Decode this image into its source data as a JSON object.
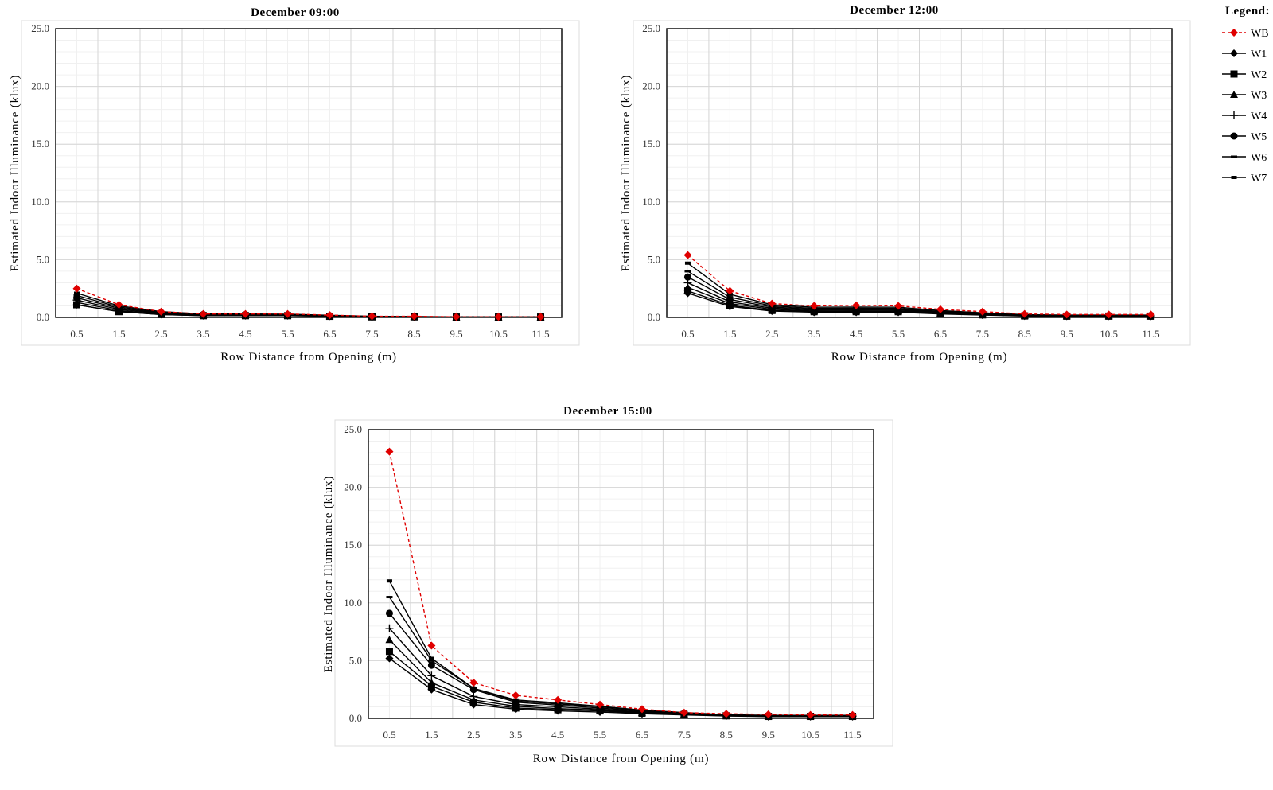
{
  "legend": {
    "title": "Legend:",
    "items": [
      {
        "name": "WB",
        "color": "#e00000",
        "marker": "diamond",
        "dashed": true
      },
      {
        "name": "W1",
        "color": "#000000",
        "marker": "diamond",
        "dashed": false
      },
      {
        "name": "W2",
        "color": "#000000",
        "marker": "square",
        "dashed": false
      },
      {
        "name": "W3",
        "color": "#000000",
        "marker": "triangle",
        "dashed": false
      },
      {
        "name": "W4",
        "color": "#000000",
        "marker": "plus",
        "dashed": false
      },
      {
        "name": "W5",
        "color": "#000000",
        "marker": "circle",
        "dashed": false
      },
      {
        "name": "W6",
        "color": "#000000",
        "marker": "dash",
        "dashed": false
      },
      {
        "name": "W7",
        "color": "#000000",
        "marker": "bar",
        "dashed": false
      }
    ]
  },
  "chart_data": [
    {
      "type": "line",
      "title": "December 09:00",
      "xlabel": "Row Distance from Opening (m)",
      "ylabel": "Estimated Indoor Illuminance (klux)",
      "ylim": [
        0,
        25
      ],
      "yticks": [
        "0.0",
        "5.0",
        "10.0",
        "15.0",
        "20.0",
        "25.0"
      ],
      "categories": [
        "0.5",
        "1.5",
        "2.5",
        "3.5",
        "4.5",
        "5.5",
        "6.5",
        "7.5",
        "8.5",
        "9.5",
        "10.5",
        "11.5"
      ],
      "grid": true,
      "series": [
        {
          "name": "WB",
          "values": [
            2.5,
            1.1,
            0.5,
            0.3,
            0.3,
            0.3,
            0.2,
            0.1,
            0.1,
            0.05,
            0.05,
            0.05
          ]
        },
        {
          "name": "W1",
          "values": [
            1.1,
            0.5,
            0.25,
            0.15,
            0.15,
            0.15,
            0.1,
            0.05,
            0.05,
            0.03,
            0.03,
            0.03
          ]
        },
        {
          "name": "W2",
          "values": [
            1.1,
            0.5,
            0.25,
            0.15,
            0.15,
            0.15,
            0.1,
            0.05,
            0.05,
            0.03,
            0.03,
            0.03
          ]
        },
        {
          "name": "W3",
          "values": [
            1.3,
            0.6,
            0.3,
            0.2,
            0.2,
            0.2,
            0.12,
            0.06,
            0.05,
            0.03,
            0.03,
            0.03
          ]
        },
        {
          "name": "W4",
          "values": [
            1.5,
            0.7,
            0.35,
            0.22,
            0.22,
            0.2,
            0.14,
            0.07,
            0.05,
            0.04,
            0.04,
            0.04
          ]
        },
        {
          "name": "W5",
          "values": [
            1.7,
            0.8,
            0.4,
            0.25,
            0.25,
            0.22,
            0.15,
            0.08,
            0.06,
            0.04,
            0.04,
            0.04
          ]
        },
        {
          "name": "W6",
          "values": [
            1.9,
            0.9,
            0.45,
            0.28,
            0.28,
            0.25,
            0.17,
            0.09,
            0.06,
            0.04,
            0.04,
            0.04
          ]
        },
        {
          "name": "W7",
          "values": [
            2.1,
            1.0,
            0.5,
            0.3,
            0.3,
            0.28,
            0.18,
            0.1,
            0.07,
            0.05,
            0.05,
            0.05
          ]
        }
      ]
    },
    {
      "type": "line",
      "title": "December 12:00",
      "xlabel": "Row Distance from Opening (m)",
      "ylabel": "Estimated Indoor Illuminance (klux)",
      "ylim": [
        0,
        25
      ],
      "yticks": [
        "0.0",
        "5.0",
        "10.0",
        "15.0",
        "20.0",
        "25.0"
      ],
      "categories": [
        "0.5",
        "1.5",
        "2.5",
        "3.5",
        "4.5",
        "5.5",
        "6.5",
        "7.5",
        "8.5",
        "9.5",
        "10.5",
        "11.5"
      ],
      "grid": true,
      "series": [
        {
          "name": "WB",
          "values": [
            5.4,
            2.3,
            1.2,
            1.0,
            1.05,
            1.0,
            0.7,
            0.5,
            0.3,
            0.25,
            0.25,
            0.25
          ]
        },
        {
          "name": "W1",
          "values": [
            2.1,
            0.95,
            0.55,
            0.45,
            0.45,
            0.45,
            0.3,
            0.2,
            0.12,
            0.1,
            0.1,
            0.1
          ]
        },
        {
          "name": "W2",
          "values": [
            2.3,
            1.05,
            0.6,
            0.5,
            0.5,
            0.5,
            0.33,
            0.22,
            0.13,
            0.11,
            0.11,
            0.11
          ]
        },
        {
          "name": "W3",
          "values": [
            2.6,
            1.2,
            0.7,
            0.55,
            0.57,
            0.55,
            0.37,
            0.25,
            0.15,
            0.12,
            0.12,
            0.12
          ]
        },
        {
          "name": "W4",
          "values": [
            3.0,
            1.35,
            0.8,
            0.63,
            0.65,
            0.63,
            0.42,
            0.28,
            0.17,
            0.14,
            0.14,
            0.14
          ]
        },
        {
          "name": "W5",
          "values": [
            3.5,
            1.55,
            0.9,
            0.7,
            0.72,
            0.7,
            0.47,
            0.32,
            0.19,
            0.16,
            0.16,
            0.16
          ]
        },
        {
          "name": "W6",
          "values": [
            4.0,
            1.75,
            1.0,
            0.78,
            0.8,
            0.78,
            0.52,
            0.35,
            0.21,
            0.18,
            0.18,
            0.18
          ]
        },
        {
          "name": "W7",
          "values": [
            4.7,
            2.0,
            1.1,
            0.88,
            0.9,
            0.88,
            0.6,
            0.4,
            0.24,
            0.2,
            0.2,
            0.2
          ]
        }
      ]
    },
    {
      "type": "line",
      "title": "December 15:00",
      "xlabel": "Row Distance from Opening (m)",
      "ylabel": "Estimated Indoor Illuminance (klux)",
      "ylim": [
        0,
        25
      ],
      "yticks": [
        "0.0",
        "5.0",
        "10.0",
        "15.0",
        "20.0",
        "25.0"
      ],
      "categories": [
        "0.5",
        "1.5",
        "2.5",
        "3.5",
        "4.5",
        "5.5",
        "6.5",
        "7.5",
        "8.5",
        "9.5",
        "10.5",
        "11.5"
      ],
      "grid": true,
      "series": [
        {
          "name": "WB",
          "values": [
            23.1,
            6.3,
            3.1,
            2.0,
            1.6,
            1.2,
            0.8,
            0.5,
            0.4,
            0.35,
            0.3,
            0.3
          ]
        },
        {
          "name": "W1",
          "values": [
            5.2,
            2.5,
            1.2,
            0.8,
            0.65,
            0.55,
            0.4,
            0.3,
            0.2,
            0.15,
            0.15,
            0.15
          ]
        },
        {
          "name": "W2",
          "values": [
            5.8,
            2.8,
            1.4,
            0.9,
            0.75,
            0.65,
            0.45,
            0.33,
            0.22,
            0.17,
            0.17,
            0.17
          ]
        },
        {
          "name": "W3",
          "values": [
            6.8,
            3.1,
            1.6,
            1.05,
            0.85,
            0.72,
            0.5,
            0.36,
            0.24,
            0.18,
            0.18,
            0.18
          ]
        },
        {
          "name": "W4",
          "values": [
            7.8,
            3.7,
            1.9,
            1.2,
            1.0,
            0.8,
            0.55,
            0.4,
            0.26,
            0.2,
            0.2,
            0.2
          ]
        },
        {
          "name": "W5",
          "values": [
            9.1,
            4.6,
            2.5,
            1.4,
            1.15,
            0.9,
            0.62,
            0.44,
            0.28,
            0.22,
            0.22,
            0.22
          ]
        },
        {
          "name": "W6",
          "values": [
            10.5,
            5.0,
            2.6,
            1.5,
            1.25,
            1.0,
            0.68,
            0.48,
            0.3,
            0.24,
            0.24,
            0.24
          ]
        },
        {
          "name": "W7",
          "values": [
            11.9,
            5.2,
            2.6,
            1.6,
            1.35,
            1.05,
            0.72,
            0.5,
            0.32,
            0.26,
            0.26,
            0.26
          ]
        }
      ]
    }
  ]
}
